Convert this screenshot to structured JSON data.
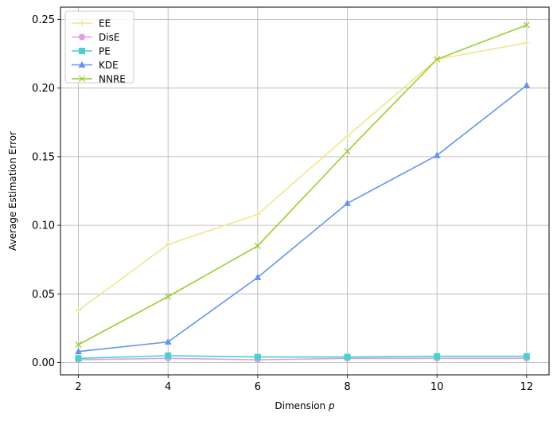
{
  "chart_data": {
    "type": "line",
    "x": [
      2,
      4,
      6,
      8,
      10,
      12
    ],
    "xticks": [
      "2",
      "4",
      "6",
      "8",
      "10",
      "12"
    ],
    "yticks": [
      "0.00",
      "0.05",
      "0.10",
      "0.15",
      "0.20",
      "0.25"
    ],
    "xlim": [
      1.6,
      12.5
    ],
    "ylim": [
      -0.009,
      0.259
    ],
    "xlabel": "Dimension ",
    "xlabel_var": "p",
    "ylabel": "Average Estimation Error",
    "grid": true,
    "legend_position": "top-left",
    "series": [
      {
        "name": "EE",
        "color": "#F0E68C",
        "marker": "plus",
        "values": [
          0.038,
          0.086,
          0.108,
          0.165,
          0.221,
          0.233
        ]
      },
      {
        "name": "DisE",
        "color": "#DDA0DD",
        "marker": "circle",
        "values": [
          0.002,
          0.003,
          0.002,
          0.003,
          0.003,
          0.003
        ]
      },
      {
        "name": "PE",
        "color": "#48D1CC",
        "marker": "square",
        "values": [
          0.003,
          0.005,
          0.004,
          0.004,
          0.0045,
          0.0045
        ]
      },
      {
        "name": "KDE",
        "color": "#6495ED",
        "marker": "triangle",
        "values": [
          0.008,
          0.015,
          0.062,
          0.116,
          0.151,
          0.202
        ]
      },
      {
        "name": "NNRE",
        "color": "#9ACD32",
        "marker": "x",
        "values": [
          0.013,
          0.048,
          0.085,
          0.154,
          0.221,
          0.246
        ]
      }
    ]
  }
}
